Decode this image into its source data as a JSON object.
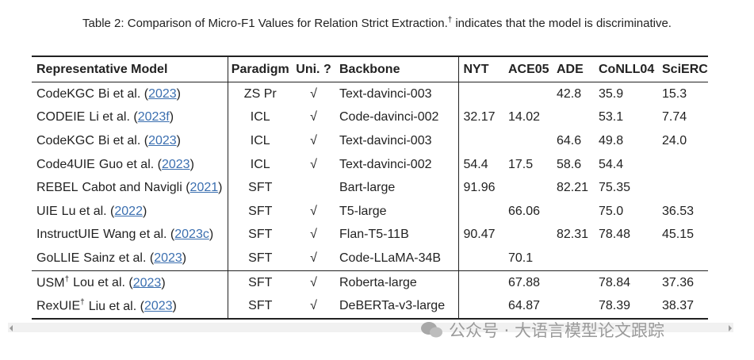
{
  "caption": {
    "text": "Table 2: Comparison of Micro-F1 Values for Relation Strict Extraction.",
    "mark": "†",
    "rest": "indicates that the model is discriminative."
  },
  "table": {
    "header": [
      "Representative Model",
      "Paradigm",
      "Uni. ?",
      "Backbone",
      "NYT",
      "ACE05",
      "ADE",
      "CoNLL04",
      "SciERC"
    ],
    "rows": [
      {
        "name": "CodeKGC",
        "dagger": null,
        "ref": "Bi et al. (",
        "year": "2023",
        "end": ")",
        "paradigm": "ZS Pr",
        "uni": "√",
        "backbone": "Text-davinci-003",
        "scores": [
          null,
          null,
          "42.8",
          "35.9",
          "15.3"
        ]
      },
      {
        "name": "CODEIE",
        "dagger": null,
        "ref": "Li et al. (",
        "year": "2023f",
        "end": ")",
        "paradigm": "ICL",
        "uni": "√",
        "backbone": "Code-davinci-002",
        "scores": [
          "32.17",
          "14.02",
          null,
          "53.1",
          "7.74"
        ]
      },
      {
        "name": "CodeKGC",
        "dagger": null,
        "ref": "Bi et al. (",
        "year": "2023",
        "end": ")",
        "paradigm": "ICL",
        "uni": "√",
        "backbone": "Text-davinci-003",
        "scores": [
          null,
          null,
          "64.6",
          "49.8",
          "24.0"
        ]
      },
      {
        "name": "Code4UIE",
        "dagger": null,
        "ref": "Guo et al. (",
        "year": "2023",
        "end": ")",
        "paradigm": "ICL",
        "uni": "√",
        "backbone": "Text-davinci-002",
        "scores": [
          "54.4",
          "17.5",
          "58.6",
          "54.4",
          null
        ]
      },
      {
        "name": "REBEL",
        "dagger": null,
        "ref": "Cabot and Navigli (",
        "year": "2021",
        "end": ")",
        "paradigm": "SFT",
        "uni": null,
        "backbone": "Bart-large",
        "scores": [
          "91.96",
          null,
          "82.21",
          "75.35",
          null
        ]
      },
      {
        "name": "UIE",
        "dagger": null,
        "ref": "Lu et al. (",
        "year": "2022",
        "end": ")",
        "paradigm": "SFT",
        "uni": "√",
        "backbone": "T5-large",
        "scores": [
          null,
          "66.06",
          null,
          "75.0",
          "36.53"
        ]
      },
      {
        "name": "InstructUIE",
        "dagger": null,
        "ref": "Wang et al. (",
        "year": "2023c",
        "end": ")",
        "paradigm": "SFT",
        "uni": "√",
        "backbone": "Flan-T5-11B",
        "scores": [
          "90.47",
          null,
          "82.31",
          "78.48",
          "45.15"
        ]
      },
      {
        "name": "GoLLIE",
        "dagger": null,
        "ref": "Sainz et al. (",
        "year": "2023",
        "end": ")",
        "paradigm": "SFT",
        "uni": "√",
        "backbone": "Code-LLaMA-34B",
        "scores": [
          null,
          "70.1",
          null,
          null,
          null
        ]
      },
      {
        "name": "USM",
        "dagger": "†",
        "ref": "Lou et al. (",
        "year": "2023",
        "end": ")",
        "paradigm": "SFT",
        "uni": "√",
        "backbone": "Roberta-large",
        "scores": [
          null,
          "67.88",
          null,
          "78.84",
          "37.36"
        ]
      },
      {
        "name": "RexUIE",
        "dagger": "†",
        "ref": "Liu et al. (",
        "year": "2023",
        "end": ")",
        "paradigm": "SFT",
        "uni": "√",
        "backbone": "DeBERTa-v3-large",
        "scores": [
          null,
          "64.87",
          null,
          "78.39",
          "38.37"
        ]
      }
    ]
  },
  "watermark": "公众号 · 大语言模型论文跟踪"
}
